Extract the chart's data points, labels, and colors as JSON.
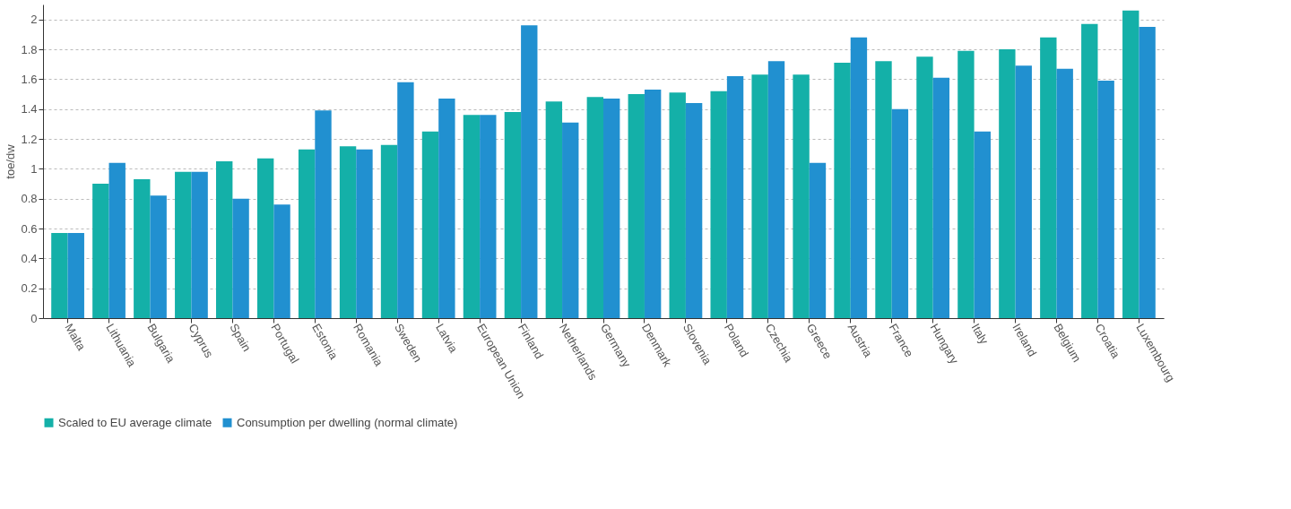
{
  "chart_data": {
    "type": "bar",
    "ylabel": "toe/dw",
    "categories": [
      "Malta",
      "Lithuania",
      "Bulgaria",
      "Cyprus",
      "Spain",
      "Portugal",
      "Estonia",
      "Romania",
      "Sweden",
      "Latvia",
      "European Union",
      "Finland",
      "Netherlands",
      "Germany",
      "Denmark",
      "Slovenia",
      "Poland",
      "Czechia",
      "Greece",
      "Austria",
      "France",
      "Hungary",
      "Italy",
      "Ireland",
      "Belgium",
      "Croatia",
      "Luxembourg"
    ],
    "series": [
      {
        "name": "Scaled to EU average climate",
        "color": "#14b0a8",
        "values": [
          0.57,
          0.9,
          0.93,
          0.98,
          1.05,
          1.07,
          1.13,
          1.15,
          1.16,
          1.25,
          1.36,
          1.38,
          1.45,
          1.48,
          1.5,
          1.51,
          1.52,
          1.63,
          1.63,
          1.71,
          1.72,
          1.75,
          1.79,
          1.8,
          1.88,
          1.97,
          2.06
        ]
      },
      {
        "name": "Consumption per dwelling (normal climate)",
        "color": "#2190d0",
        "values": [
          0.57,
          1.04,
          0.82,
          0.98,
          0.8,
          0.76,
          1.39,
          1.13,
          1.58,
          1.47,
          1.36,
          1.96,
          1.31,
          1.47,
          1.53,
          1.44,
          1.62,
          1.72,
          1.04,
          1.88,
          1.4,
          1.61,
          1.25,
          1.69,
          1.67,
          1.59,
          1.95
        ]
      }
    ],
    "ylim": [
      0,
      2.1
    ],
    "yticks": [
      0,
      0.2,
      0.4,
      0.6,
      0.8,
      1,
      1.2,
      1.4,
      1.6,
      1.8,
      2
    ],
    "grid": "y",
    "legend": "bottom"
  }
}
